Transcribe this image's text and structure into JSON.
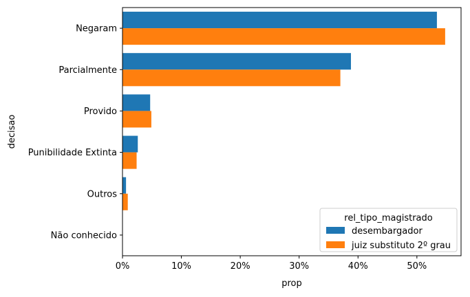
{
  "chart_data": {
    "type": "bar",
    "orientation": "horizontal",
    "xlabel": "prop",
    "ylabel": "decisao",
    "xlim": [
      0,
      0.575
    ],
    "xticks": [
      0,
      0.1,
      0.2,
      0.3,
      0.4,
      0.5
    ],
    "xtick_labels": [
      "0%",
      "10%",
      "20%",
      "30%",
      "40%",
      "50%"
    ],
    "categories": [
      "Negaram",
      "Parcialmente",
      "Provido",
      "Punibilidade Extinta",
      "Outros",
      "Não conhecido"
    ],
    "series": [
      {
        "name": "desembargador",
        "color": "#1f77b4",
        "values": [
          0.534,
          0.388,
          0.047,
          0.026,
          0.006,
          0.0
        ]
      },
      {
        "name": "juiz substituto 2º grau",
        "color": "#ff7f0e",
        "values": [
          0.548,
          0.37,
          0.049,
          0.024,
          0.009,
          0.0
        ]
      }
    ],
    "legend": {
      "title": "rel_tipo_magistrado",
      "placement": "lower-right"
    },
    "grid": false
  }
}
